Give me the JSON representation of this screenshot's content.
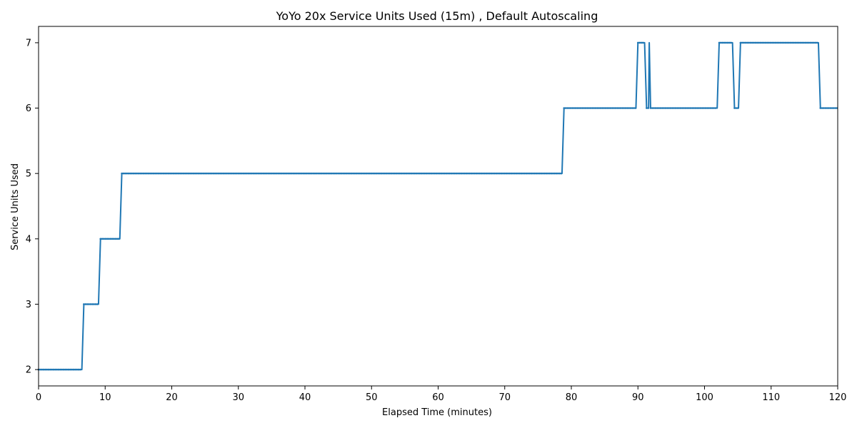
{
  "chart_data": {
    "type": "line",
    "title": "YoYo 20x Service Units Used (15m) , Default Autoscaling",
    "xlabel": "Elapsed Time (minutes)",
    "ylabel": "Service Units Used",
    "xlim": [
      0,
      120
    ],
    "ylim": [
      1.75,
      7.25
    ],
    "xticks": [
      0,
      10,
      20,
      30,
      40,
      50,
      60,
      70,
      80,
      90,
      100,
      110,
      120
    ],
    "yticks": [
      2,
      3,
      4,
      5,
      6,
      7
    ],
    "grid": false,
    "line_color": "#1f77b4",
    "series": [
      {
        "points": [
          [
            0,
            2
          ],
          [
            6.5,
            2
          ],
          [
            6.8,
            3
          ],
          [
            9.0,
            3
          ],
          [
            9.3,
            4
          ],
          [
            12.2,
            4
          ],
          [
            12.5,
            5
          ],
          [
            78.6,
            5
          ],
          [
            78.9,
            6
          ],
          [
            89.7,
            6
          ],
          [
            90.0,
            7
          ],
          [
            91.0,
            7
          ],
          [
            91.3,
            6
          ],
          [
            91.6,
            6
          ],
          [
            91.7,
            7
          ],
          [
            91.9,
            6
          ],
          [
            101.9,
            6
          ],
          [
            102.2,
            7
          ],
          [
            104.2,
            7
          ],
          [
            104.5,
            6
          ],
          [
            105.1,
            6
          ],
          [
            105.4,
            7
          ],
          [
            117.1,
            7
          ],
          [
            117.4,
            6
          ],
          [
            120,
            6
          ]
        ]
      }
    ]
  }
}
